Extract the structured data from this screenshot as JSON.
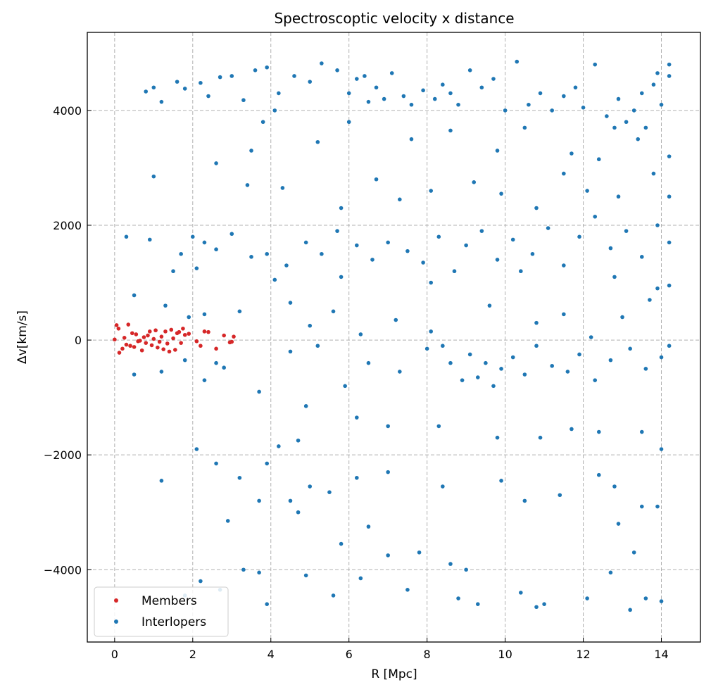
{
  "chart_data": {
    "type": "scatter",
    "title": "Spectroscoptic velocity x distance",
    "xlabel": "R [Mpc]",
    "ylabel": "Δv[km/s]",
    "xlim": [
      -0.7,
      15
    ],
    "ylim": [
      -5260,
      5360
    ],
    "xticks": [
      0,
      2,
      4,
      6,
      8,
      10,
      12,
      14
    ],
    "yticks": [
      -4000,
      -2000,
      0,
      2000,
      4000
    ],
    "grid": true,
    "legend": "lower-left",
    "series": [
      {
        "name": "Members",
        "color": "#d62728",
        "points": [
          [
            0,
            10
          ],
          [
            0.05,
            260
          ],
          [
            0.1,
            200
          ],
          [
            0.12,
            -220
          ],
          [
            0.2,
            -150
          ],
          [
            0.25,
            40
          ],
          [
            0.3,
            -80
          ],
          [
            0.35,
            270
          ],
          [
            0.4,
            -100
          ],
          [
            0.45,
            120
          ],
          [
            0.5,
            -120
          ],
          [
            0.55,
            100
          ],
          [
            0.6,
            -20
          ],
          [
            0.7,
            -180
          ],
          [
            0.75,
            50
          ],
          [
            0.8,
            -50
          ],
          [
            0.85,
            80
          ],
          [
            0.9,
            150
          ],
          [
            0.95,
            -90
          ],
          [
            1.0,
            20
          ],
          [
            1.05,
            170
          ],
          [
            1.1,
            -130
          ],
          [
            1.15,
            -30
          ],
          [
            1.2,
            60
          ],
          [
            1.3,
            150
          ],
          [
            1.35,
            -60
          ],
          [
            1.4,
            -200
          ],
          [
            1.45,
            180
          ],
          [
            1.5,
            30
          ],
          [
            1.55,
            -170
          ],
          [
            1.6,
            120
          ],
          [
            1.7,
            -50
          ],
          [
            1.75,
            200
          ],
          [
            1.8,
            90
          ],
          [
            1.9,
            110
          ],
          [
            2.1,
            -20
          ],
          [
            2.2,
            -100
          ],
          [
            2.3,
            150
          ],
          [
            2.4,
            140
          ],
          [
            2.6,
            -150
          ],
          [
            2.8,
            80
          ],
          [
            2.95,
            -40
          ],
          [
            3.0,
            -30
          ],
          [
            3.05,
            60
          ],
          [
            1.65,
            140
          ],
          [
            0.65,
            -10
          ],
          [
            1.25,
            -160
          ]
        ]
      },
      {
        "name": "Interlopers",
        "color": "#1f77b4",
        "points": [
          [
            0.8,
            4330
          ],
          [
            1.0,
            4400
          ],
          [
            1.2,
            4150
          ],
          [
            1.6,
            4500
          ],
          [
            1.8,
            4380
          ],
          [
            2.2,
            4480
          ],
          [
            2.4,
            4250
          ],
          [
            2.7,
            4580
          ],
          [
            3.0,
            4600
          ],
          [
            3.3,
            4180
          ],
          [
            3.6,
            4700
          ],
          [
            3.9,
            4750
          ],
          [
            4.2,
            4300
          ],
          [
            4.6,
            4600
          ],
          [
            5.0,
            4500
          ],
          [
            5.3,
            4820
          ],
          [
            5.7,
            4700
          ],
          [
            6.0,
            4300
          ],
          [
            6.2,
            4550
          ],
          [
            6.4,
            4600
          ],
          [
            6.5,
            4150
          ],
          [
            6.7,
            4400
          ],
          [
            6.9,
            4200
          ],
          [
            7.1,
            4650
          ],
          [
            7.4,
            4250
          ],
          [
            7.6,
            4100
          ],
          [
            7.9,
            4350
          ],
          [
            8.2,
            4200
          ],
          [
            8.4,
            4450
          ],
          [
            8.6,
            4300
          ],
          [
            8.8,
            4100
          ],
          [
            9.1,
            4700
          ],
          [
            9.4,
            4400
          ],
          [
            9.7,
            4550
          ],
          [
            10.0,
            4000
          ],
          [
            10.3,
            4850
          ],
          [
            10.6,
            4100
          ],
          [
            10.9,
            4300
          ],
          [
            11.2,
            4000
          ],
          [
            11.5,
            4250
          ],
          [
            11.8,
            4400
          ],
          [
            12.0,
            4050
          ],
          [
            12.3,
            4800
          ],
          [
            12.6,
            3900
          ],
          [
            12.9,
            4200
          ],
          [
            13.1,
            3800
          ],
          [
            13.3,
            4000
          ],
          [
            13.5,
            4300
          ],
          [
            13.6,
            3700
          ],
          [
            13.8,
            4450
          ],
          [
            14.0,
            4100
          ],
          [
            14.2,
            4600
          ],
          [
            14.2,
            4800
          ],
          [
            13.9,
            4650
          ],
          [
            12.8,
            3700
          ],
          [
            3.5,
            3300
          ],
          [
            3.8,
            3800
          ],
          [
            4.1,
            4000
          ],
          [
            5.2,
            3450
          ],
          [
            6.0,
            3800
          ],
          [
            7.6,
            3500
          ],
          [
            8.6,
            3650
          ],
          [
            9.8,
            3300
          ],
          [
            10.5,
            3700
          ],
          [
            11.7,
            3250
          ],
          [
            12.4,
            3150
          ],
          [
            13.4,
            3500
          ],
          [
            14.2,
            3200
          ],
          [
            1.0,
            2850
          ],
          [
            2.6,
            3080
          ],
          [
            3.4,
            2700
          ],
          [
            4.3,
            2650
          ],
          [
            5.8,
            2300
          ],
          [
            6.7,
            2800
          ],
          [
            7.3,
            2450
          ],
          [
            8.1,
            2600
          ],
          [
            9.2,
            2750
          ],
          [
            9.9,
            2550
          ],
          [
            10.8,
            2300
          ],
          [
            11.5,
            2900
          ],
          [
            12.1,
            2600
          ],
          [
            12.9,
            2500
          ],
          [
            13.8,
            2900
          ],
          [
            14.2,
            2500
          ],
          [
            0.3,
            1800
          ],
          [
            0.9,
            1750
          ],
          [
            1.7,
            1500
          ],
          [
            2.0,
            1800
          ],
          [
            2.3,
            1700
          ],
          [
            2.6,
            1580
          ],
          [
            3.0,
            1850
          ],
          [
            3.5,
            1450
          ],
          [
            3.9,
            1500
          ],
          [
            4.4,
            1300
          ],
          [
            4.9,
            1700
          ],
          [
            5.3,
            1500
          ],
          [
            5.7,
            1900
          ],
          [
            6.2,
            1650
          ],
          [
            6.6,
            1400
          ],
          [
            7.0,
            1700
          ],
          [
            7.5,
            1550
          ],
          [
            7.9,
            1350
          ],
          [
            8.3,
            1800
          ],
          [
            8.7,
            1200
          ],
          [
            9.0,
            1650
          ],
          [
            9.4,
            1900
          ],
          [
            9.8,
            1400
          ],
          [
            10.2,
            1750
          ],
          [
            10.7,
            1500
          ],
          [
            11.1,
            1950
          ],
          [
            11.5,
            1300
          ],
          [
            11.9,
            1800
          ],
          [
            12.3,
            2150
          ],
          [
            12.7,
            1600
          ],
          [
            13.1,
            1900
          ],
          [
            13.5,
            1450
          ],
          [
            13.9,
            2000
          ],
          [
            14.2,
            1700
          ],
          [
            1.5,
            1200
          ],
          [
            2.1,
            1250
          ],
          [
            4.1,
            1050
          ],
          [
            5.8,
            1100
          ],
          [
            8.1,
            1000
          ],
          [
            10.4,
            1200
          ],
          [
            12.8,
            1100
          ],
          [
            13.9,
            900
          ],
          [
            0.5,
            780
          ],
          [
            1.3,
            600
          ],
          [
            1.9,
            400
          ],
          [
            2.3,
            450
          ],
          [
            3.2,
            500
          ],
          [
            4.5,
            650
          ],
          [
            5.0,
            250
          ],
          [
            5.6,
            500
          ],
          [
            6.3,
            100
          ],
          [
            7.2,
            350
          ],
          [
            8.1,
            150
          ],
          [
            9.6,
            600
          ],
          [
            10.8,
            300
          ],
          [
            11.5,
            450
          ],
          [
            12.2,
            50
          ],
          [
            13.0,
            400
          ],
          [
            13.7,
            700
          ],
          [
            14.2,
            950
          ],
          [
            0.5,
            -600
          ],
          [
            1.2,
            -550
          ],
          [
            1.8,
            -350
          ],
          [
            2.3,
            -700
          ],
          [
            2.6,
            -400
          ],
          [
            2.8,
            -480
          ],
          [
            3.7,
            -900
          ],
          [
            4.5,
            -200
          ],
          [
            5.2,
            -100
          ],
          [
            5.9,
            -800
          ],
          [
            6.5,
            -400
          ],
          [
            7.3,
            -550
          ],
          [
            8.0,
            -150
          ],
          [
            8.4,
            -100
          ],
          [
            8.6,
            -400
          ],
          [
            8.9,
            -700
          ],
          [
            9.1,
            -250
          ],
          [
            9.3,
            -650
          ],
          [
            9.5,
            -400
          ],
          [
            9.7,
            -800
          ],
          [
            9.9,
            -500
          ],
          [
            10.2,
            -300
          ],
          [
            10.5,
            -600
          ],
          [
            10.8,
            -100
          ],
          [
            11.2,
            -450
          ],
          [
            11.6,
            -550
          ],
          [
            11.9,
            -250
          ],
          [
            12.3,
            -700
          ],
          [
            12.7,
            -350
          ],
          [
            13.2,
            -150
          ],
          [
            13.6,
            -500
          ],
          [
            14.0,
            -300
          ],
          [
            14.2,
            -100
          ],
          [
            4.9,
            -1150
          ],
          [
            6.2,
            -1350
          ],
          [
            7.0,
            -1500
          ],
          [
            8.3,
            -1500
          ],
          [
            9.8,
            -1700
          ],
          [
            10.9,
            -1700
          ],
          [
            11.7,
            -1550
          ],
          [
            12.4,
            -1600
          ],
          [
            13.5,
            -1600
          ],
          [
            14.0,
            -1900
          ],
          [
            2.1,
            -1900
          ],
          [
            3.9,
            -2150
          ],
          [
            4.2,
            -1850
          ],
          [
            4.7,
            -1750
          ],
          [
            1.2,
            -2450
          ],
          [
            2.6,
            -2150
          ],
          [
            3.2,
            -2400
          ],
          [
            3.7,
            -2800
          ],
          [
            4.5,
            -2800
          ],
          [
            5.0,
            -2550
          ],
          [
            5.5,
            -2650
          ],
          [
            6.2,
            -2400
          ],
          [
            7.0,
            -2300
          ],
          [
            8.4,
            -2550
          ],
          [
            9.9,
            -2450
          ],
          [
            10.5,
            -2800
          ],
          [
            11.4,
            -2700
          ],
          [
            12.4,
            -2350
          ],
          [
            12.8,
            -2550
          ],
          [
            13.5,
            -2900
          ],
          [
            13.9,
            -2900
          ],
          [
            2.9,
            -3150
          ],
          [
            4.7,
            -3000
          ],
          [
            6.5,
            -3250
          ],
          [
            12.9,
            -3200
          ],
          [
            5.8,
            -3550
          ],
          [
            7.0,
            -3750
          ],
          [
            7.8,
            -3700
          ],
          [
            8.6,
            -3900
          ],
          [
            9.0,
            -4000
          ],
          [
            3.3,
            -4000
          ],
          [
            3.7,
            -4050
          ],
          [
            4.9,
            -4100
          ],
          [
            6.3,
            -4150
          ],
          [
            7.5,
            -4350
          ],
          [
            9.3,
            -4600
          ],
          [
            10.4,
            -4400
          ],
          [
            11.0,
            -4600
          ],
          [
            12.1,
            -4500
          ],
          [
            13.2,
            -4700
          ],
          [
            13.6,
            -4500
          ],
          [
            14.0,
            -4550
          ],
          [
            1.8,
            -4450
          ],
          [
            2.2,
            -4200
          ],
          [
            2.7,
            -4350
          ],
          [
            3.9,
            -4600
          ],
          [
            5.6,
            -4450
          ],
          [
            8.8,
            -4500
          ],
          [
            10.8,
            -4650
          ],
          [
            12.7,
            -4050
          ],
          [
            13.3,
            -3700
          ]
        ]
      }
    ]
  }
}
